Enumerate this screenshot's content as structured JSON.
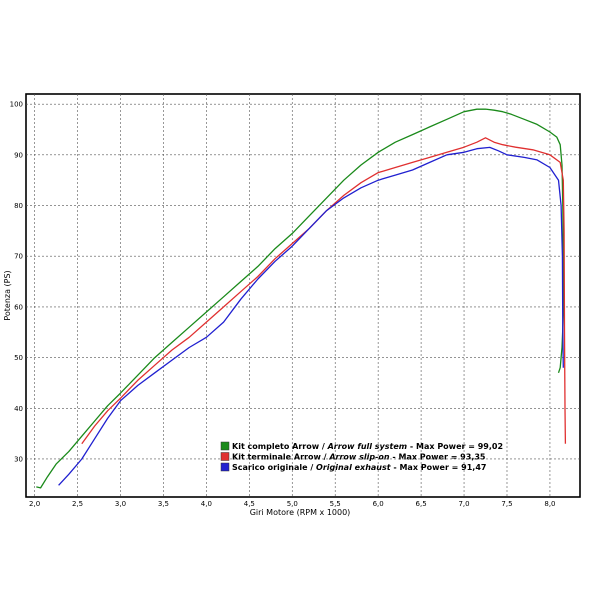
{
  "chart_data": {
    "type": "line",
    "xlabel": "Giri Motore (RPM x 1000)",
    "ylabel": "Potenza (PS)",
    "xlim": [
      1.9,
      8.35
    ],
    "ylim": [
      22.5,
      102
    ],
    "x_ticks": [
      2.0,
      2.5,
      3.0,
      3.5,
      4.0,
      4.5,
      5.0,
      5.5,
      6.0,
      6.5,
      7.0,
      7.5,
      8.0
    ],
    "x_tick_labels": [
      "2,0",
      "2,5",
      "3,0",
      "3,5",
      "4,0",
      "4,5",
      "5,0",
      "5,5",
      "6,0",
      "6,5",
      "7,0",
      "7,5",
      "8,0"
    ],
    "y_ticks": [
      30,
      40,
      50,
      60,
      70,
      80,
      90,
      100
    ],
    "y_tick_labels": [
      "30",
      "40",
      "50",
      "60",
      "70",
      "80",
      "90",
      "100"
    ],
    "grid": true,
    "legend_position": "bottom-center",
    "series": [
      {
        "name": "Kit completo Arrow",
        "name_en": "Arrow full system",
        "legend_suffix": " - Max Power = 99,02",
        "color": "#1a8a1a",
        "x": [
          2.02,
          2.07,
          2.15,
          2.25,
          2.4,
          2.55,
          2.7,
          2.85,
          3.0,
          3.2,
          3.4,
          3.6,
          3.8,
          4.0,
          4.2,
          4.4,
          4.6,
          4.8,
          5.0,
          5.2,
          5.4,
          5.6,
          5.8,
          6.0,
          6.2,
          6.4,
          6.6,
          6.8,
          7.0,
          7.15,
          7.25,
          7.35,
          7.45,
          7.55,
          7.7,
          7.85,
          8.0,
          8.08,
          8.12,
          8.14,
          8.15,
          8.155,
          8.16,
          8.14,
          8.12,
          8.1
        ],
        "y": [
          24.5,
          24.3,
          26.5,
          29,
          31.5,
          34.5,
          37.5,
          40.5,
          43,
          46.5,
          50,
          53,
          56,
          59,
          62,
          65,
          68,
          71.5,
          74.5,
          78,
          81.5,
          85,
          88,
          90.5,
          92.5,
          94,
          95.5,
          97,
          98.5,
          99.0,
          99.02,
          98.8,
          98.5,
          98,
          97,
          96,
          94.5,
          93.5,
          92,
          88,
          80,
          70,
          60,
          52,
          48,
          47
        ]
      },
      {
        "name": "Kit terminale Arrow",
        "name_en": "Arrow slip-on",
        "legend_suffix": " - Max Power = 93,35",
        "color": "#e03030",
        "x": [
          2.55,
          2.7,
          2.85,
          3.0,
          3.2,
          3.4,
          3.6,
          3.8,
          4.0,
          4.2,
          4.4,
          4.6,
          4.8,
          5.0,
          5.2,
          5.4,
          5.6,
          5.8,
          6.0,
          6.2,
          6.4,
          6.6,
          6.8,
          7.0,
          7.15,
          7.25,
          7.35,
          7.45,
          7.6,
          7.8,
          8.0,
          8.12,
          8.155,
          8.165,
          8.17,
          8.175,
          8.18
        ],
        "y": [
          33,
          36.5,
          39.5,
          42,
          45.5,
          48.5,
          51.5,
          54,
          57,
          60,
          63,
          66,
          69.5,
          72.5,
          75.5,
          79,
          82,
          84.5,
          86.5,
          87.5,
          88.5,
          89.5,
          90.5,
          91.5,
          92.5,
          93.35,
          92.5,
          92,
          91.5,
          91,
          90,
          88.5,
          85,
          75,
          55,
          40,
          33
        ]
      },
      {
        "name": "Scarico originale",
        "name_en": "Original exhaust",
        "legend_suffix": " - Max Power = 91,47",
        "color": "#2020d0",
        "x": [
          2.28,
          2.4,
          2.55,
          2.7,
          2.85,
          3.0,
          3.2,
          3.4,
          3.6,
          3.8,
          4.0,
          4.2,
          4.4,
          4.6,
          4.8,
          5.0,
          5.2,
          5.4,
          5.6,
          5.8,
          6.0,
          6.2,
          6.4,
          6.6,
          6.8,
          7.0,
          7.15,
          7.3,
          7.4,
          7.5,
          7.7,
          7.85,
          8.0,
          8.1,
          8.13,
          8.145,
          8.15,
          8.155
        ],
        "y": [
          24.8,
          27,
          30,
          34,
          38,
          41.5,
          44.5,
          47,
          49.5,
          52,
          54,
          57,
          61.5,
          65.5,
          69,
          72,
          75.5,
          79,
          81.5,
          83.5,
          85,
          86,
          87,
          88.5,
          90,
          90.5,
          91.2,
          91.47,
          90.8,
          90,
          89.5,
          89,
          87.5,
          85,
          80,
          70,
          55,
          48
        ]
      }
    ]
  }
}
